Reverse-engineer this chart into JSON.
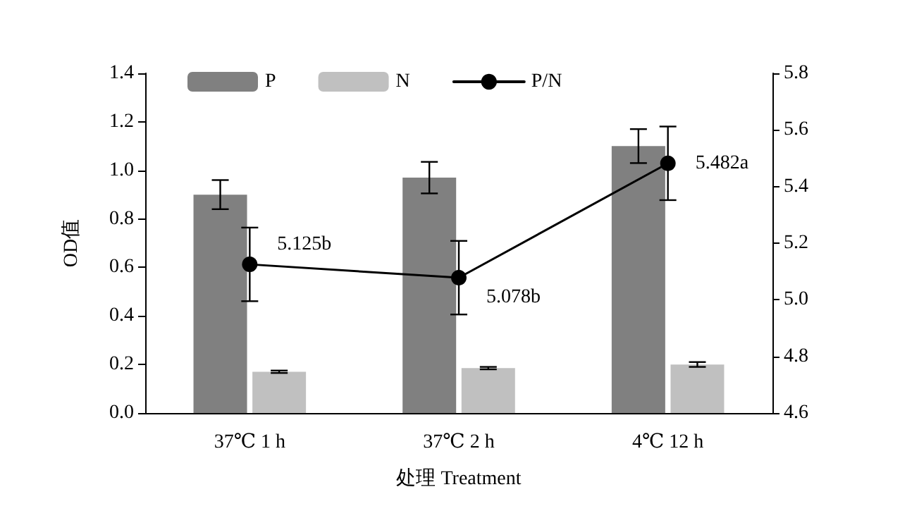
{
  "chart_data": {
    "type": "bar",
    "xlabel": "处理 Treatment",
    "ylabel": "OD值",
    "categories": [
      "37℃ 1 h",
      "37℃ 2 h",
      "4℃ 12 h"
    ],
    "series": [
      {
        "name": "P",
        "color": "#808080",
        "values": [
          0.9,
          0.97,
          1.1
        ],
        "errors": [
          0.06,
          0.065,
          0.07
        ]
      },
      {
        "name": "N",
        "color": "#c0c0c0",
        "values": [
          0.17,
          0.185,
          0.2
        ],
        "errors": [
          0.005,
          0.005,
          0.01
        ]
      },
      {
        "name": "P/N",
        "type": "line",
        "axis": "y2",
        "color": "#000000",
        "values": [
          5.125,
          5.078,
          5.482
        ],
        "errors": [
          0.13,
          0.13,
          0.13
        ],
        "value_labels": [
          "5.125b",
          "5.078b",
          "5.482a"
        ]
      }
    ],
    "ylim": [
      0,
      1.4
    ],
    "yticks": [
      {
        "value": 0,
        "label": "0.0"
      },
      0.2,
      0.4,
      0.6,
      0.8,
      {
        "value": 1,
        "label": "1.0"
      },
      1.2,
      1.4
    ],
    "y2lim": [
      4.6,
      5.8
    ],
    "y2ticks": [
      4.6,
      4.8,
      {
        "value": 5,
        "label": "5.0"
      },
      5.2,
      5.4,
      5.6,
      5.8
    ],
    "grid": false,
    "legend": "top left",
    "marker": "circle",
    "line_style": "solid"
  }
}
